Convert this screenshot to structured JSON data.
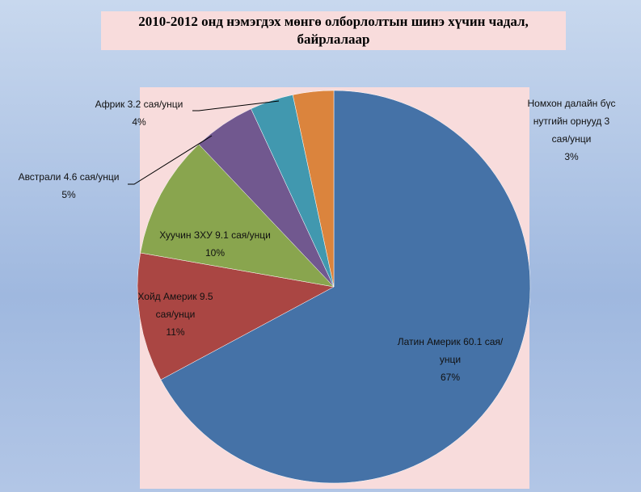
{
  "chart_data": {
    "type": "pie",
    "title": "2010-2012 онд нэмэгдэх мөнгө олборлолтын шинэ хүчин чадал, байрлалаар",
    "categories": [
      "Латин Америк",
      "Хойд Америк",
      "Хуучин ЗХУ",
      "Австрали",
      "Африк",
      "Номхон далайн бүс нутгийн орнууд"
    ],
    "values": [
      60.1,
      9.5,
      9.1,
      4.6,
      3.2,
      3
    ],
    "value_labels": [
      "60.1 сая/унци",
      "9.5 сая/унци",
      "9.1 сая/унци",
      "4.6 сая/унци",
      "3.2 сая/унци",
      "3 сая/унци"
    ],
    "percent_labels": [
      "67%",
      "11%",
      "10%",
      "5%",
      "4%",
      "3%"
    ],
    "colors": [
      "#4572a7",
      "#aa4643",
      "#89a54e",
      "#71588f",
      "#4198af",
      "#db843d"
    ]
  }
}
